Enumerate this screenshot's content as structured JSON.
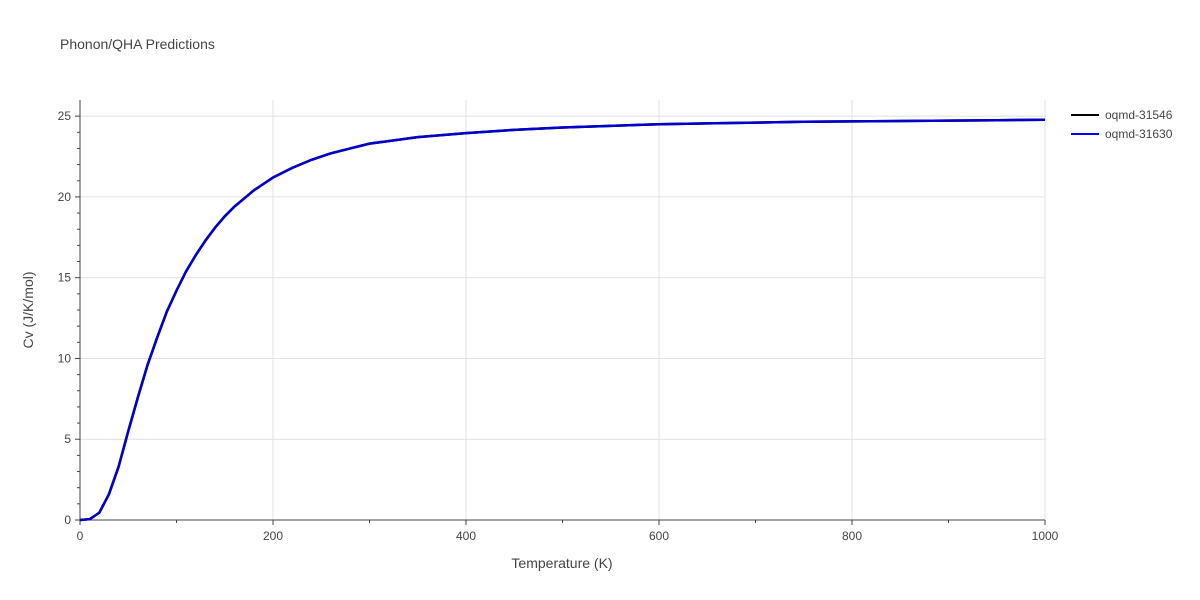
{
  "chart_data": {
    "type": "line",
    "title": "Phonon/QHA Predictions",
    "xlabel": "Temperature (K)",
    "ylabel": "Cv (J/K/mol)",
    "xlim": [
      0,
      1000
    ],
    "ylim": [
      0,
      26
    ],
    "x_ticks": [
      0,
      200,
      400,
      600,
      800,
      1000
    ],
    "y_ticks": [
      0,
      5,
      10,
      15,
      20,
      25
    ],
    "grid": true,
    "legend_position": "right",
    "series": [
      {
        "name": "oqmd-31546",
        "color": "#000000",
        "x": [
          0,
          10,
          20,
          30,
          40,
          50,
          60,
          70,
          80,
          90,
          100,
          110,
          120,
          130,
          140,
          150,
          160,
          170,
          180,
          190,
          200,
          220,
          240,
          260,
          280,
          300,
          350,
          400,
          450,
          500,
          550,
          600,
          650,
          700,
          750,
          800,
          850,
          900,
          950,
          1000
        ],
        "y": [
          0,
          0.05,
          0.45,
          1.6,
          3.3,
          5.5,
          7.6,
          9.6,
          11.3,
          12.9,
          14.2,
          15.4,
          16.4,
          17.3,
          18.1,
          18.8,
          19.4,
          19.9,
          20.4,
          20.8,
          21.2,
          21.8,
          22.3,
          22.7,
          23.0,
          23.3,
          23.7,
          23.95,
          24.15,
          24.3,
          24.4,
          24.5,
          24.55,
          24.6,
          24.65,
          24.68,
          24.7,
          24.72,
          24.75,
          24.78
        ]
      },
      {
        "name": "oqmd-31630",
        "color": "#0000cc",
        "x": [
          0,
          10,
          20,
          30,
          40,
          50,
          60,
          70,
          80,
          90,
          100,
          110,
          120,
          130,
          140,
          150,
          160,
          170,
          180,
          190,
          200,
          220,
          240,
          260,
          280,
          300,
          350,
          400,
          450,
          500,
          550,
          600,
          650,
          700,
          750,
          800,
          850,
          900,
          950,
          1000
        ],
        "y": [
          0,
          0.05,
          0.45,
          1.6,
          3.3,
          5.5,
          7.6,
          9.6,
          11.3,
          12.9,
          14.2,
          15.4,
          16.4,
          17.3,
          18.1,
          18.8,
          19.4,
          19.9,
          20.4,
          20.8,
          21.2,
          21.8,
          22.3,
          22.7,
          23.0,
          23.3,
          23.7,
          23.95,
          24.15,
          24.3,
          24.4,
          24.5,
          24.55,
          24.6,
          24.65,
          24.68,
          24.7,
          24.72,
          24.75,
          24.78
        ]
      }
    ]
  }
}
